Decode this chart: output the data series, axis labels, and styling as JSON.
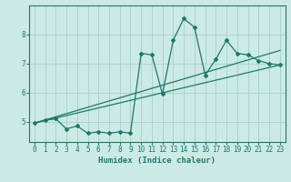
{
  "xlabel": "Humidex (Indice chaleur)",
  "ylabel": "",
  "bg_color": "#cceae4",
  "line_color": "#1a7a6a",
  "grid_color": "#aad4cc",
  "x_data": [
    0,
    1,
    2,
    3,
    4,
    5,
    6,
    7,
    8,
    9,
    10,
    11,
    12,
    13,
    14,
    15,
    16,
    17,
    18,
    19,
    20,
    21,
    22,
    23
  ],
  "y_data": [
    4.95,
    5.05,
    5.1,
    4.75,
    4.85,
    4.6,
    4.65,
    4.6,
    4.65,
    4.6,
    7.35,
    7.3,
    5.95,
    7.8,
    8.55,
    8.25,
    6.6,
    7.15,
    7.8,
    7.35,
    7.3,
    7.1,
    7.0,
    6.95
  ],
  "trend1_x": [
    0,
    23
  ],
  "trend1_y": [
    4.95,
    6.95
  ],
  "trend2_x": [
    0,
    23
  ],
  "trend2_y": [
    4.95,
    7.45
  ],
  "xlim": [
    -0.5,
    23.5
  ],
  "ylim": [
    4.3,
    9.0
  ],
  "yticks": [
    5,
    6,
    7,
    8
  ],
  "xticks": [
    0,
    1,
    2,
    3,
    4,
    5,
    6,
    7,
    8,
    9,
    10,
    11,
    12,
    13,
    14,
    15,
    16,
    17,
    18,
    19,
    20,
    21,
    22,
    23
  ],
  "xlabel_fontsize": 6.5,
  "tick_fontsize": 5.5
}
